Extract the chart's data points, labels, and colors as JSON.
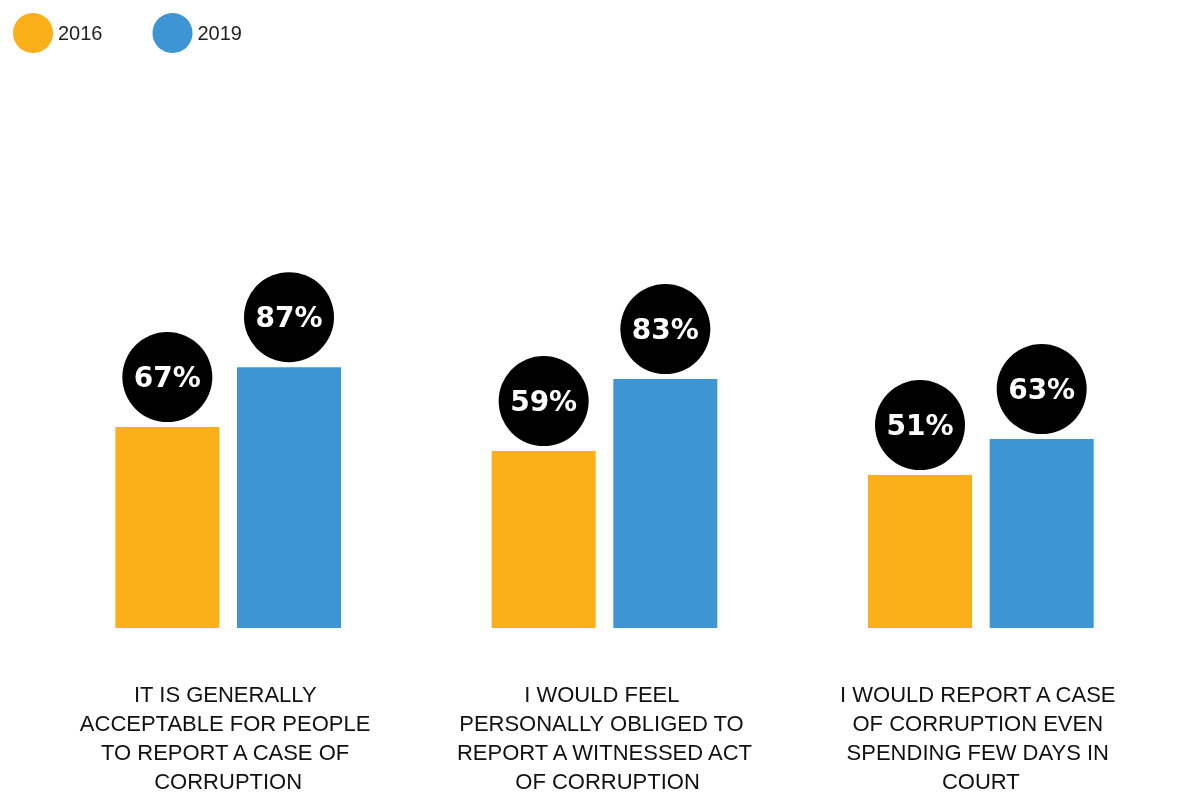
{
  "chart_data": {
    "type": "bar",
    "categories": [
      "IT IS GENERALLY ACCEPTABLE FOR PEOPLE TO REPORT A CASE OF CORRUPTION",
      "I WOULD FEEL PERSONALLY OBLIGED TO REPORT A WITNESSED ACT OF CORRUPTION",
      "I WOULD REPORT A CASE OF CORRUPTION EVEN SPENDING FEW DAYS IN COURT"
    ],
    "series": [
      {
        "name": "2016",
        "color": "#fbb01a",
        "values": [
          67,
          59,
          51
        ],
        "value_labels": [
          "67%",
          "59%",
          "51%"
        ]
      },
      {
        "name": "2019",
        "color": "#3d95d3",
        "values": [
          87,
          83,
          63
        ],
        "value_labels": [
          "87%",
          "83%",
          "63%"
        ]
      }
    ],
    "legend": "top left"
  }
}
